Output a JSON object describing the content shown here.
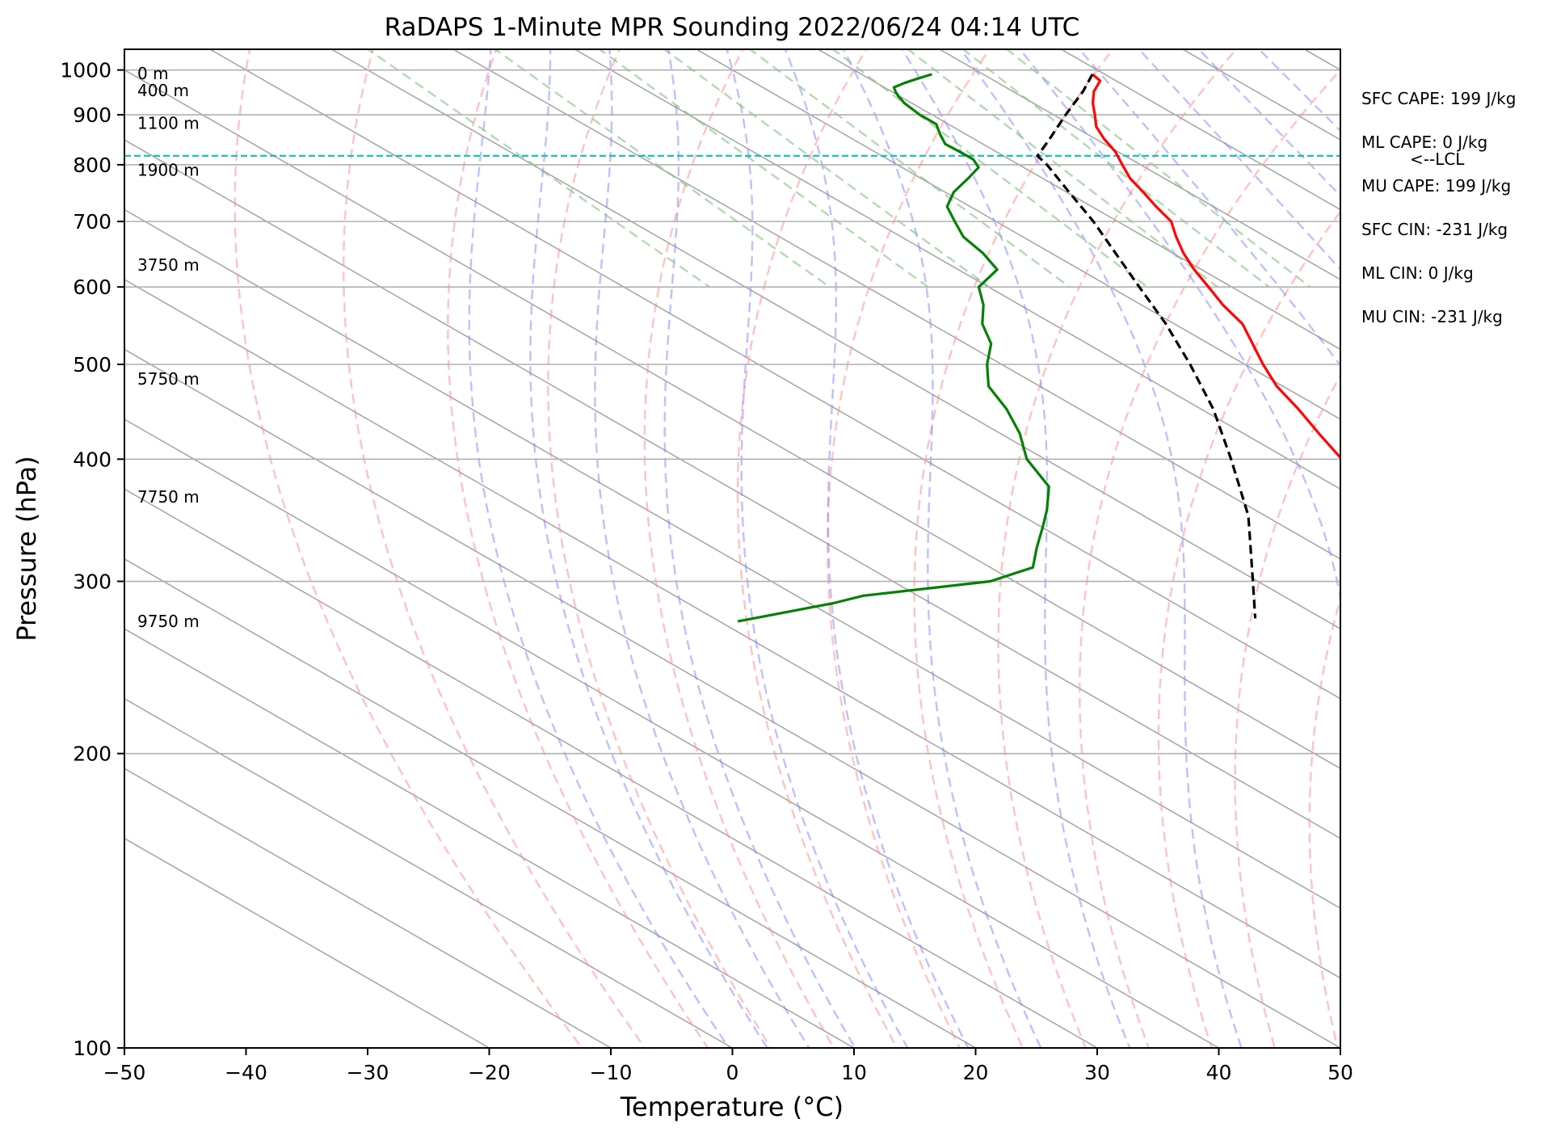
{
  "chart_data": {
    "type": "line",
    "title": "RaDAPS 1-Minute MPR Sounding 2022/06/24 04:14 UTC",
    "xlabel": "Temperature (°C)",
    "ylabel": "Pressure (hPa)",
    "xlim": [
      -50,
      50
    ],
    "ylim": [
      1050,
      100
    ],
    "y_scale": "log",
    "skew_deg_per_decade": 140,
    "x_ticks": [
      {
        "value": -50,
        "label": "−50"
      },
      {
        "value": -40,
        "label": "−40"
      },
      {
        "value": -30,
        "label": "−30"
      },
      {
        "value": -20,
        "label": "−20"
      },
      {
        "value": -10,
        "label": "−10"
      },
      {
        "value": 0,
        "label": "0"
      },
      {
        "value": 10,
        "label": "10"
      },
      {
        "value": 20,
        "label": "20"
      },
      {
        "value": 30,
        "label": "30"
      },
      {
        "value": 40,
        "label": "40"
      },
      {
        "value": 50,
        "label": "50"
      }
    ],
    "y_ticks": [
      {
        "value": 100,
        "label": "100"
      },
      {
        "value": 200,
        "label": "200"
      },
      {
        "value": 300,
        "label": "300"
      },
      {
        "value": 400,
        "label": "400"
      },
      {
        "value": 500,
        "label": "500"
      },
      {
        "value": 600,
        "label": "600"
      },
      {
        "value": 700,
        "label": "700"
      },
      {
        "value": 800,
        "label": "800"
      },
      {
        "value": 900,
        "label": "900"
      },
      {
        "value": 1000,
        "label": "1000"
      }
    ],
    "height_labels": [
      {
        "p": 992,
        "label": "0 m"
      },
      {
        "p": 953,
        "label": "400 m"
      },
      {
        "p": 882,
        "label": "1100 m"
      },
      {
        "p": 790,
        "label": "1900 m"
      },
      {
        "p": 632,
        "label": "3750 m"
      },
      {
        "p": 483,
        "label": "5750 m"
      },
      {
        "p": 366,
        "label": "7750 m"
      },
      {
        "p": 273,
        "label": "9750 m"
      }
    ],
    "lcl": {
      "p": 817,
      "label": "<--LCL",
      "color": "#00bfbf"
    },
    "indices": [
      {
        "text": "SFC CAPE: 199 J/kg"
      },
      {
        "text": "ML CAPE: 0 J/kg"
      },
      {
        "text": "MU CAPE: 199 J/kg"
      },
      {
        "text": "SFC CIN: -231 J/kg"
      },
      {
        "text": "ML CIN: 0 J/kg"
      },
      {
        "text": "MU CIN: -231 J/kg"
      }
    ],
    "background_lines": {
      "isotherms_color": "#a8a8a8",
      "dry_adiabats_color": "#ff9090",
      "moist_adiabats_color": "#8080ff",
      "mixing_ratio_color": "#80c080",
      "isobars_color": "#b0b0b0",
      "dry_adiabat_thetas_C": [
        -40,
        -30,
        -20,
        -10,
        0,
        10,
        20,
        30,
        40,
        50,
        60,
        70,
        80,
        90,
        100,
        110,
        120,
        130,
        140,
        150,
        160,
        170,
        180,
        190,
        200,
        210,
        220,
        230,
        240
      ],
      "moist_adiabat_thetaw_C": [
        -20,
        -15,
        -10,
        -5,
        0,
        5,
        10,
        15,
        20,
        25,
        30,
        35,
        40,
        45
      ],
      "mixing_ratio_gkg": [
        0.4,
        1,
        2,
        3,
        5,
        8,
        12,
        16,
        20
      ]
    },
    "series": [
      {
        "key": "temperature",
        "color": "#ff0000",
        "points": [
          {
            "p": 990,
            "t": 29.0
          },
          {
            "p": 975,
            "t": 28.7
          },
          {
            "p": 950,
            "t": 26.6
          },
          {
            "p": 925,
            "t": 24.9
          },
          {
            "p": 900,
            "t": 23.4
          },
          {
            "p": 875,
            "t": 21.8
          },
          {
            "p": 850,
            "t": 20.7
          },
          {
            "p": 825,
            "t": 19.8
          },
          {
            "p": 800,
            "t": 18.5
          },
          {
            "p": 775,
            "t": 17.2
          },
          {
            "p": 750,
            "t": 16.3
          },
          {
            "p": 725,
            "t": 15.3
          },
          {
            "p": 700,
            "t": 14.4
          },
          {
            "p": 675,
            "t": 12.6
          },
          {
            "p": 650,
            "t": 10.9
          },
          {
            "p": 625,
            "t": 9.4
          },
          {
            "p": 600,
            "t": 8.1
          },
          {
            "p": 575,
            "t": 6.7
          },
          {
            "p": 550,
            "t": 5.6
          },
          {
            "p": 525,
            "t": 3.6
          },
          {
            "p": 500,
            "t": 1.5
          },
          {
            "p": 475,
            "t": -0.5
          },
          {
            "p": 450,
            "t": -2.0
          },
          {
            "p": 425,
            "t": -3.8
          },
          {
            "p": 400,
            "t": -5.6
          },
          {
            "p": 375,
            "t": -7.7
          },
          {
            "p": 350,
            "t": -10.3
          },
          {
            "p": 325,
            "t": -12.8
          },
          {
            "p": 300,
            "t": -15.5
          },
          {
            "p": 275,
            "t": -19.0
          }
        ]
      },
      {
        "key": "dewpoint",
        "color": "#008000",
        "points": [
          {
            "p": 990,
            "t": 15.8
          },
          {
            "p": 980,
            "t": 14.0
          },
          {
            "p": 970,
            "t": 12.3
          },
          {
            "p": 960,
            "t": 10.8
          },
          {
            "p": 950,
            "t": 10.3
          },
          {
            "p": 940,
            "t": 9.9
          },
          {
            "p": 925,
            "t": 9.4
          },
          {
            "p": 900,
            "t": 9.0
          },
          {
            "p": 880,
            "t": 9.0
          },
          {
            "p": 860,
            "t": 7.9
          },
          {
            "p": 840,
            "t": 6.9
          },
          {
            "p": 825,
            "t": 7.0
          },
          {
            "p": 810,
            "t": 7.0
          },
          {
            "p": 795,
            "t": 6.3
          },
          {
            "p": 775,
            "t": 3.9
          },
          {
            "p": 750,
            "t": 0.7
          },
          {
            "p": 725,
            "t": -1.9
          },
          {
            "p": 700,
            "t": -3.4
          },
          {
            "p": 675,
            "t": -4.9
          },
          {
            "p": 650,
            "t": -5.6
          },
          {
            "p": 625,
            "t": -6.8
          },
          {
            "p": 600,
            "t": -10.8
          },
          {
            "p": 575,
            "t": -13.0
          },
          {
            "p": 550,
            "t": -15.8
          },
          {
            "p": 525,
            "t": -17.9
          },
          {
            "p": 500,
            "t": -21.2
          },
          {
            "p": 475,
            "t": -24.2
          },
          {
            "p": 450,
            "t": -26.0
          },
          {
            "p": 425,
            "t": -28.4
          },
          {
            "p": 400,
            "t": -31.5
          },
          {
            "p": 375,
            "t": -33.6
          },
          {
            "p": 355,
            "t": -37.1
          },
          {
            "p": 340,
            "t": -40.1
          },
          {
            "p": 325,
            "t": -43.3
          },
          {
            "p": 310,
            "t": -46.5
          },
          {
            "p": 300,
            "t": -52.0
          },
          {
            "p": 290,
            "t": -64.5
          },
          {
            "p": 285,
            "t": -68.0
          },
          {
            "p": 273,
            "t": -78.5
          }
        ]
      },
      {
        "key": "parcel",
        "color": "#000000",
        "dashed": true,
        "points": [
          {
            "p": 990,
            "t": 29.0
          },
          {
            "p": 950,
            "t": 25.7
          },
          {
            "p": 900,
            "t": 21.0
          },
          {
            "p": 850,
            "t": 16.2
          },
          {
            "p": 817,
            "t": 12.8
          },
          {
            "p": 800,
            "t": 12.3
          },
          {
            "p": 750,
            "t": 10.2
          },
          {
            "p": 700,
            "t": 8.0
          },
          {
            "p": 650,
            "t": 5.3
          },
          {
            "p": 600,
            "t": 2.4
          },
          {
            "p": 550,
            "t": -0.7
          },
          {
            "p": 500,
            "t": -4.5
          },
          {
            "p": 450,
            "t": -9.0
          },
          {
            "p": 400,
            "t": -14.7
          },
          {
            "p": 350,
            "t": -21.4
          },
          {
            "p": 300,
            "t": -30.4
          },
          {
            "p": 275,
            "t": -35.5
          }
        ]
      }
    ]
  }
}
